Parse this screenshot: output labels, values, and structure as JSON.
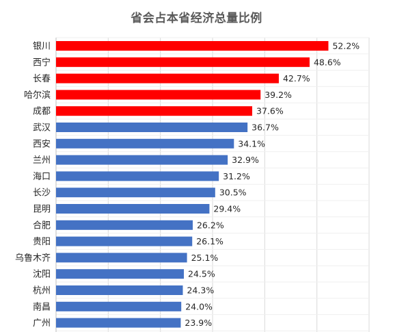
{
  "chart_data": {
    "type": "bar",
    "orientation": "horizontal",
    "title": "省会占本省经济总量比例",
    "categories": [
      "银川",
      "西宁",
      "长春",
      "哈尔滨",
      "成都",
      "武汉",
      "西安",
      "兰州",
      "海口",
      "长沙",
      "昆明",
      "合肥",
      "贵阳",
      "乌鲁木齐",
      "沈阳",
      "杭州",
      "南昌",
      "广州"
    ],
    "values": [
      52.2,
      48.6,
      42.7,
      39.2,
      37.6,
      36.7,
      34.1,
      32.9,
      31.2,
      30.5,
      29.4,
      26.2,
      26.1,
      25.1,
      24.5,
      24.3,
      24.0,
      23.9
    ],
    "value_labels": [
      "52.2%",
      "48.6%",
      "42.7%",
      "39.2%",
      "37.6%",
      "36.7%",
      "34.1%",
      "32.9%",
      "31.2%",
      "30.5%",
      "29.4%",
      "26.2%",
      "26.1%",
      "25.1%",
      "24.5%",
      "24.3%",
      "24.0%",
      "23.9%"
    ],
    "highlight_count": 5,
    "colors": {
      "highlight": "#ff0000",
      "normal": "#4472c4",
      "grid": "#d9d9d9"
    },
    "xlim": [
      0,
      60
    ],
    "grid": true,
    "legend": "none"
  }
}
